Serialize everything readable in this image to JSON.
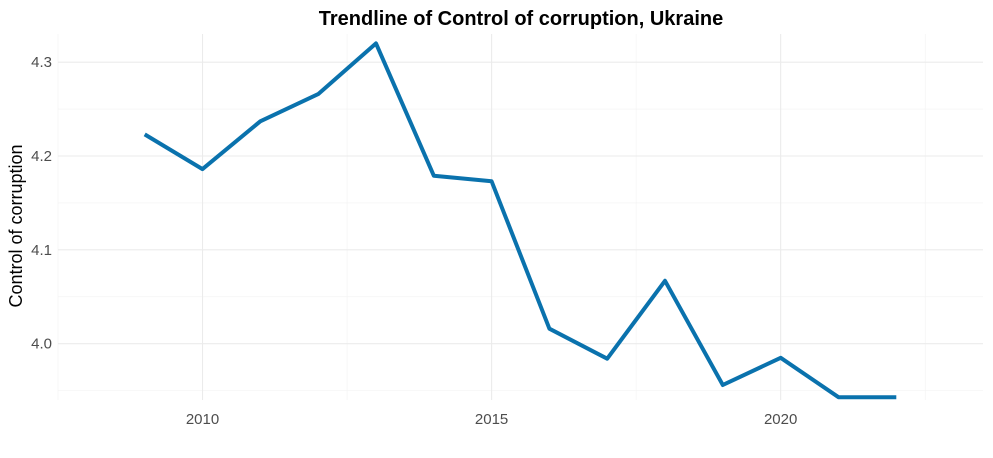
{
  "chart_data": {
    "type": "line",
    "title": "Trendline of Control of corruption, Ukraine",
    "xlabel": "",
    "ylabel": "Control of corruption",
    "xlim": [
      2007.5,
      2023.5
    ],
    "ylim": [
      3.94,
      4.33
    ],
    "x_ticks": [
      2010,
      2015,
      2020
    ],
    "x_tick_labels": [
      "2010",
      "2015",
      "2020"
    ],
    "y_ticks": [
      4.0,
      4.1,
      4.2,
      4.3
    ],
    "y_tick_labels": [
      "4.0",
      "4.1",
      "4.2",
      "4.3"
    ],
    "grid": true,
    "series": [
      {
        "color": "#0a72ad",
        "x": [
          2009,
          2010,
          2011,
          2012,
          2013,
          2014,
          2015,
          2016,
          2017,
          2018,
          2019,
          2020,
          2021,
          2022
        ],
        "values": [
          4.223,
          4.186,
          4.237,
          4.266,
          4.32,
          4.179,
          4.173,
          4.016,
          3.984,
          4.067,
          3.956,
          3.985,
          3.943,
          3.943
        ]
      }
    ]
  }
}
